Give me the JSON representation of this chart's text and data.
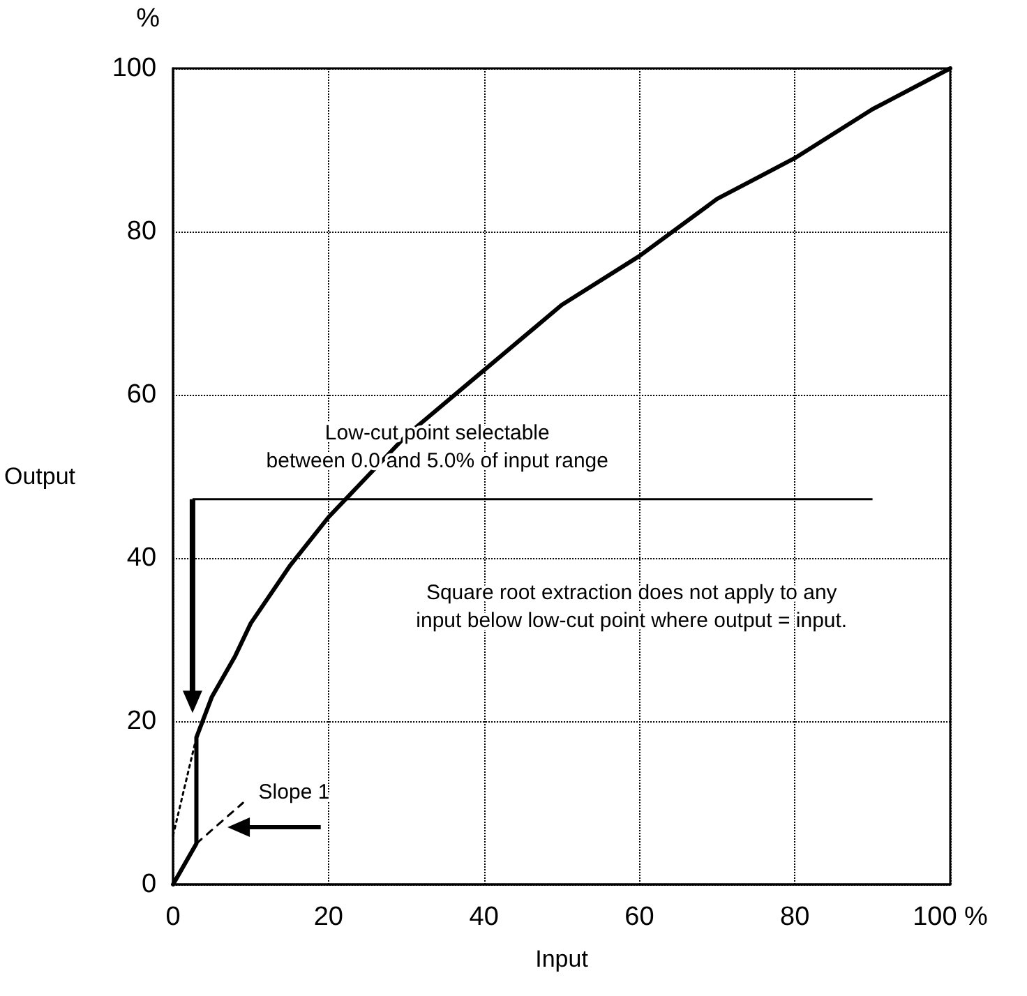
{
  "chart_data": {
    "type": "line",
    "xlabel": "Input",
    "ylabel": "Output",
    "annotations": [
      "%",
      "Low-cut point selectable\nbetween 0.0 and 5.0% of input range",
      "Square root extraction does not apply to any\ninput below low-cut point where output = input.",
      "Slope 1"
    ],
    "series": [
      {
        "color": "#000000",
        "line_style": "solid",
        "x": [
          0,
          3,
          3,
          5,
          8,
          10,
          15,
          20,
          25,
          30,
          40,
          50,
          60,
          70,
          80,
          90,
          100
        ],
        "values": [
          0,
          5,
          18,
          23,
          28,
          32,
          39,
          45,
          50,
          55,
          63,
          71,
          77,
          84,
          89,
          95,
          100
        ]
      },
      {
        "color": "#000000",
        "line_style": "dotted",
        "x": [
          0,
          3
        ],
        "values": [
          6,
          18
        ]
      },
      {
        "color": "#000000",
        "line_style": "dashed",
        "x": [
          3,
          9
        ],
        "values": [
          5,
          10
        ]
      }
    ],
    "xlim": [
      0,
      100
    ],
    "xticks": [
      0,
      20,
      40,
      60,
      80,
      {
        "value": 100,
        "label": "100 %"
      }
    ],
    "ylim": [
      0,
      100
    ],
    "yticks": [
      0,
      20,
      40,
      60,
      80,
      100
    ],
    "grid": true,
    "marker": "none"
  }
}
